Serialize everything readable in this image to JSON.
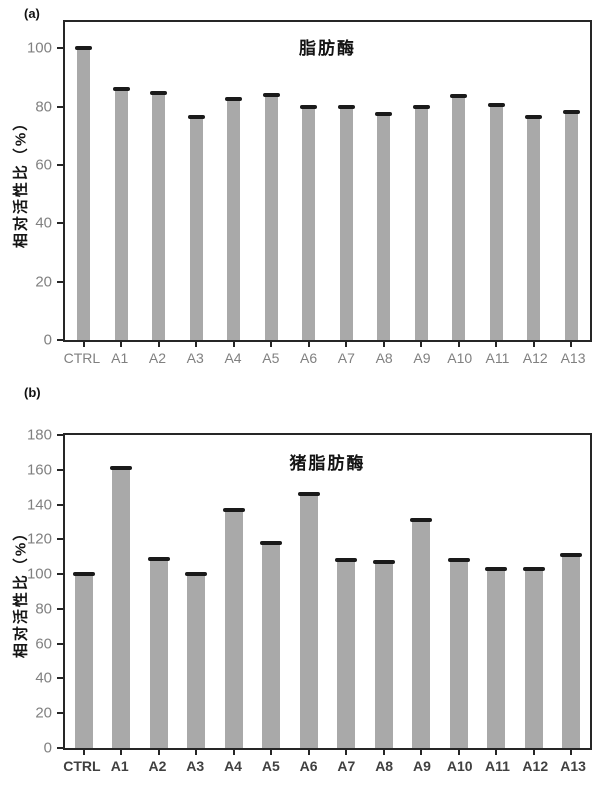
{
  "page": {
    "background": "#ffffff"
  },
  "chart_data": [
    {
      "type": "bar",
      "panel_label": "(a)",
      "title": "脂肪酶",
      "ylabel": "相对活性比（%）",
      "xlabel": "",
      "categories": [
        "CTRL",
        "A1",
        "A2",
        "A3",
        "A4",
        "A5",
        "A6",
        "A7",
        "A8",
        "A9",
        "A10",
        "A11",
        "A12",
        "A13"
      ],
      "values": [
        100,
        86,
        84.5,
        76.5,
        82.5,
        84,
        80,
        80,
        77.5,
        80,
        83.5,
        80.5,
        76.5,
        78
      ],
      "error_caps": true,
      "ylim": [
        0,
        109
      ],
      "yticks": [
        0,
        20,
        40,
        60,
        80,
        100
      ],
      "grid": false,
      "legend": "none",
      "bar_color": "#a9a9a9",
      "cap_color": "#1a1a1a",
      "axis_color": "#262626",
      "ytick_color": "#808080",
      "xtick_color": "#808080"
    },
    {
      "type": "bar",
      "panel_label": "(b)",
      "title": "猪脂肪酶",
      "ylabel": "相对活性比（%）",
      "xlabel": "",
      "categories": [
        "CTRL",
        "A1",
        "A2",
        "A3",
        "A4",
        "A5",
        "A6",
        "A7",
        "A8",
        "A9",
        "A10",
        "A11",
        "A12",
        "A13"
      ],
      "values": [
        100,
        161,
        108.5,
        100,
        137,
        118,
        146,
        108,
        107,
        131,
        108,
        103,
        103,
        111
      ],
      "error_caps": true,
      "ylim": [
        0,
        180
      ],
      "yticks": [
        0,
        20,
        40,
        60,
        80,
        100,
        120,
        140,
        160,
        180
      ],
      "grid": false,
      "legend": "none",
      "bar_color": "#a9a9a9",
      "cap_color": "#1a1a1a",
      "axis_color": "#262626",
      "ytick_color": "#808080",
      "xtick_color": "#404040"
    }
  ]
}
